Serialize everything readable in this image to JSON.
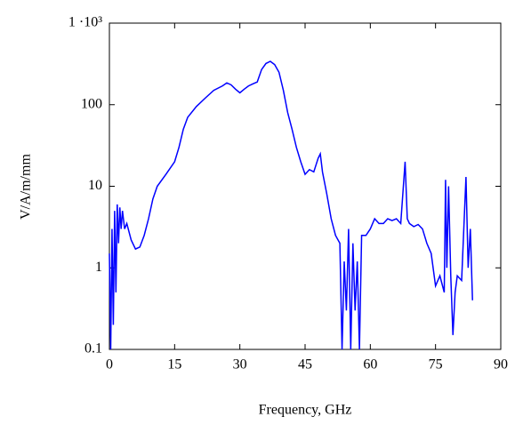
{
  "chart_data": {
    "type": "line",
    "xlabel": "Frequency, GHz",
    "ylabel": "V/A/m/mm",
    "x": [
      0,
      0.3,
      0.6,
      0.9,
      1.2,
      1.5,
      1.8,
      2.1,
      2.4,
      2.7,
      3,
      3.5,
      4,
      5,
      6,
      7,
      8,
      9,
      10,
      11,
      13,
      15,
      16,
      17,
      18,
      20,
      22,
      24,
      26,
      27,
      28,
      29,
      30,
      31,
      32,
      33,
      34,
      35,
      36,
      37,
      38,
      39,
      40,
      41,
      42,
      43,
      44,
      45,
      46,
      47,
      48,
      48.5,
      49,
      50,
      51,
      52,
      53,
      53.5,
      54,
      54.5,
      55,
      55.5,
      56,
      56.5,
      57,
      57.5,
      58,
      59,
      60,
      61,
      62,
      63,
      64,
      65,
      66,
      67,
      68,
      68.5,
      69,
      70,
      71,
      72,
      73,
      74,
      75,
      76,
      77,
      77.3,
      77.6,
      78,
      78.5,
      79,
      79.5,
      80,
      81,
      82,
      82.5,
      83,
      83.5
    ],
    "series": [
      {
        "name": "V/A/m/mm",
        "color": "#0000ff",
        "values": [
          1.5,
          0.1,
          3,
          0.2,
          5,
          0.5,
          6,
          2,
          5.5,
          3,
          5,
          3,
          3.5,
          2.2,
          1.7,
          1.8,
          2.5,
          4,
          7,
          10,
          14,
          20,
          30,
          50,
          70,
          95,
          120,
          150,
          170,
          185,
          175,
          155,
          140,
          155,
          170,
          180,
          190,
          270,
          320,
          340,
          310,
          250,
          150,
          80,
          50,
          30,
          20,
          14,
          16,
          15,
          22,
          25,
          15,
          8,
          4,
          2.5,
          2,
          0.1,
          1.2,
          0.3,
          3,
          0.1,
          2,
          0.3,
          1.2,
          0.1,
          2.5,
          2.5,
          3,
          4,
          3.5,
          3.5,
          4,
          3.8,
          4,
          3.5,
          20,
          4,
          3.5,
          3.2,
          3.4,
          3,
          2,
          1.5,
          0.6,
          0.8,
          0.5,
          12,
          1,
          10,
          0.8,
          0.15,
          0.5,
          0.8,
          0.7,
          13,
          1,
          3,
          0.4
        ]
      }
    ],
    "xlim": [
      0,
      90
    ],
    "xticks": [
      0,
      15,
      30,
      45,
      60,
      75,
      90
    ],
    "ylim": [
      0.1,
      1000
    ],
    "yticks": [
      0.1,
      1,
      10,
      100,
      {
        "value": 1000,
        "label": "1 ·10³"
      }
    ],
    "yscale": "log",
    "grid": false
  }
}
